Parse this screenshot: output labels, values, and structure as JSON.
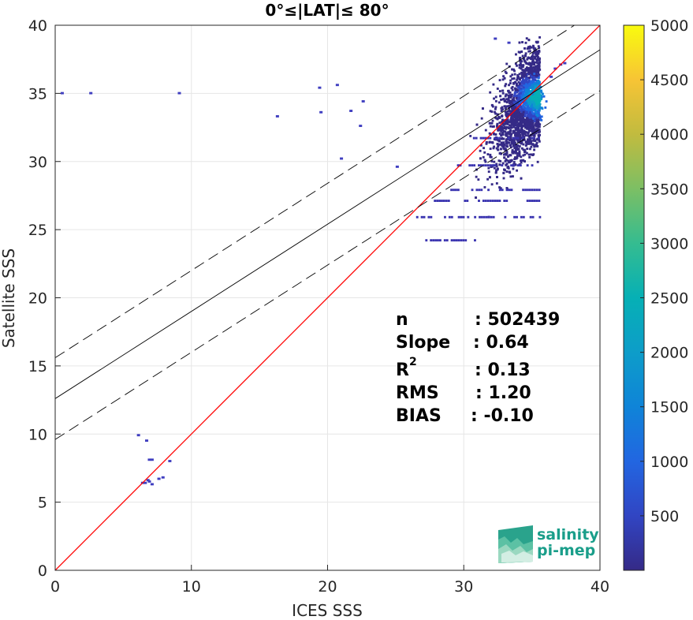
{
  "chart_data": {
    "type": "heatmap",
    "title": "0°≤|LAT|≤ 80°",
    "xlabel": "ICES SSS",
    "ylabel": "Satellite SSS",
    "xlim": [
      0,
      40
    ],
    "ylim": [
      0,
      40
    ],
    "xticks": [
      "0",
      "10",
      "20",
      "30",
      "40"
    ],
    "yticks": [
      "0",
      "5",
      "10",
      "15",
      "20",
      "25",
      "30",
      "35",
      "40"
    ],
    "grid": true,
    "colorbar": {
      "colormap": "parula",
      "range": [
        0,
        5000
      ],
      "ticks": [
        "500",
        "1000",
        "1500",
        "2000",
        "2500",
        "3000",
        "3500",
        "4000",
        "4500",
        "5000"
      ]
    },
    "lines": [
      {
        "name": "1:1",
        "color": "#ff0000",
        "x": [
          0,
          40
        ],
        "y": [
          0,
          40
        ]
      },
      {
        "name": "fit",
        "color": "#000000",
        "x": [
          0,
          40
        ],
        "y": [
          12.6,
          38.2
        ]
      },
      {
        "name": "fit+2sd",
        "color": "#000000",
        "dashed": true,
        "x": [
          0,
          40
        ],
        "y": [
          15.6,
          41.2
        ]
      },
      {
        "name": "fit-2sd",
        "color": "#000000",
        "dashed": true,
        "x": [
          0,
          40
        ],
        "y": [
          9.6,
          35.2
        ]
      }
    ],
    "density_core": {
      "x": 35.3,
      "y": 34.8,
      "peak": 3000
    },
    "stats": {
      "labels": [
        "n",
        "Slope",
        "R",
        "RMS",
        "BIAS"
      ],
      "values": [
        ": 502439",
        ": 0.64",
        ": 0.13",
        ": 1.20",
        ": -0.10"
      ],
      "r_superscript": "2"
    }
  },
  "logo": {
    "line1": "salinity",
    "line2": "pi-mep",
    "color": "#1a9e8a"
  }
}
